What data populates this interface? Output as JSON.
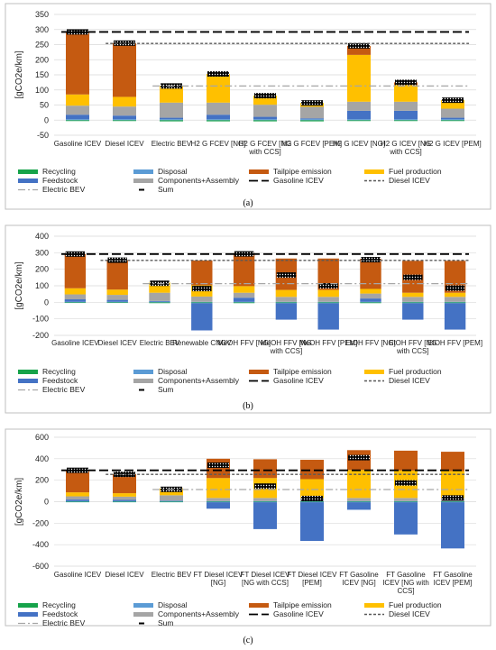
{
  "chart_data": [
    {
      "type": "bar",
      "panel_label": "(a)",
      "ylabel": "[gCO2e/km]",
      "ylim": [
        -50,
        350
      ],
      "yticks": [
        -50,
        0,
        50,
        100,
        150,
        200,
        250,
        300,
        350
      ],
      "categories": [
        "Gasoline ICEV",
        "Diesel ICEV",
        "Electric BEV",
        "H2 G FCEV [NG]",
        "H2 G FCEV [NG with CCS]",
        "H2 G FCEV [PEM]",
        "H2 G ICEV [NG]",
        "H2 G ICEV [NG with CCS]",
        "H2 G ICEV [PEM]"
      ],
      "series": [
        {
          "name": "Recycling",
          "values": [
            -3,
            -3,
            -4,
            -4,
            -4,
            -4,
            -3,
            -3,
            -3
          ]
        },
        {
          "name": "Disposal",
          "values": [
            3,
            3,
            3,
            3,
            3,
            3,
            3,
            3,
            3
          ]
        },
        {
          "name": "Feedstock",
          "values": [
            15,
            12,
            5,
            15,
            8,
            3,
            28,
            28,
            5
          ]
        },
        {
          "name": "Components+Assembly",
          "values": [
            30,
            30,
            50,
            40,
            40,
            38,
            30,
            30,
            30
          ]
        },
        {
          "name": "Fuel production",
          "values": [
            37,
            32,
            55,
            95,
            30,
            13,
            155,
            55,
            28
          ]
        },
        {
          "name": "Tailpipe emission",
          "values": [
            207,
            178,
            0,
            0,
            0,
            0,
            30,
            9,
            0
          ]
        }
      ],
      "sum": [
        292,
        255,
        113,
        153,
        81,
        57,
        246,
        125,
        66
      ],
      "reference_lines": {
        "Gasoline ICEV": 292,
        "Diesel ICEV": 254,
        "Electric BEV": 113
      }
    },
    {
      "type": "bar",
      "panel_label": "(b)",
      "ylabel": "[gCO2e/km]",
      "ylim": [
        -200,
        400
      ],
      "yticks": [
        -200,
        -100,
        0,
        100,
        200,
        300,
        400
      ],
      "categories": [
        "Gasoline ICEV",
        "Diesel ICEV",
        "Electric BEV",
        "Renewable CNGV",
        "MeOH FFV [NG]",
        "MeOH FFV [NG with CCS]",
        "MeOH FFV [PEM]",
        "EtOH FFV [NG]",
        "EtOH FFV [NG with CCS]",
        "EtOH FFV [PEM]"
      ],
      "series": [
        {
          "name": "Recycling",
          "values": [
            -4,
            -4,
            -5,
            -5,
            -5,
            -5,
            -5,
            -5,
            -5,
            -5
          ]
        },
        {
          "name": "Disposal",
          "values": [
            3,
            3,
            3,
            3,
            3,
            3,
            3,
            3,
            3,
            3
          ]
        },
        {
          "name": "Feedstock",
          "values": [
            15,
            12,
            5,
            -165,
            25,
            -100,
            -160,
            20,
            -100,
            -160
          ]
        },
        {
          "name": "Components+Assembly",
          "values": [
            30,
            30,
            50,
            32,
            30,
            30,
            30,
            30,
            30,
            30
          ]
        },
        {
          "name": "Fuel production",
          "values": [
            37,
            32,
            62,
            68,
            40,
            42,
            42,
            28,
            25,
            25
          ]
        },
        {
          "name": "Tailpipe emission",
          "values": [
            207,
            178,
            0,
            150,
            200,
            190,
            190,
            183,
            193,
            193
          ]
        }
      ],
      "sum": [
        292,
        255,
        115,
        83,
        293,
        165,
        100,
        258,
        151,
        86
      ],
      "reference_lines": {
        "Gasoline ICEV": 292,
        "Diesel ICEV": 254,
        "Electric BEV": 113
      }
    },
    {
      "type": "bar",
      "panel_label": "(c)",
      "ylabel": "[gCO2e/km]",
      "ylim": [
        -600,
        600
      ],
      "yticks": [
        -600,
        -400,
        -200,
        0,
        200,
        400,
        600
      ],
      "categories": [
        "Gasoline ICEV",
        "Diesel ICEV",
        "Electric BEV",
        "FT Diesel ICEV [NG]",
        "FT Diesel ICEV [NG with CCS]",
        "FT Diesel ICEV [PEM]",
        "FT Gasoline ICEV [NG]",
        "FT Gasoline ICEV [NG with CCS]",
        "FT Gasoline ICEV [PEM]"
      ],
      "series": [
        {
          "name": "Recycling",
          "values": [
            -5,
            -5,
            -5,
            -5,
            -5,
            -5,
            -5,
            -5,
            -5
          ]
        },
        {
          "name": "Disposal",
          "values": [
            5,
            5,
            5,
            5,
            5,
            5,
            5,
            5,
            5
          ]
        },
        {
          "name": "Feedstock",
          "values": [
            15,
            12,
            5,
            -60,
            -250,
            -360,
            -70,
            -300,
            -430
          ]
        },
        {
          "name": "Components+Assembly",
          "values": [
            30,
            30,
            50,
            30,
            30,
            30,
            30,
            30,
            30
          ]
        },
        {
          "name": "Fuel production",
          "values": [
            37,
            32,
            65,
            185,
            185,
            175,
            260,
            255,
            250
          ]
        },
        {
          "name": "Tailpipe emission",
          "values": [
            207,
            178,
            0,
            180,
            175,
            180,
            185,
            185,
            180
          ]
        }
      ],
      "sum": [
        292,
        255,
        115,
        340,
        145,
        30,
        410,
        175,
        35
      ],
      "reference_lines": {
        "Gasoline ICEV": 292,
        "Diesel ICEV": 254,
        "Electric BEV": 113
      }
    }
  ],
  "legend": {
    "recycling": "Recycling",
    "disposal": "Disposal",
    "tailpipe": "Tailpipe emission",
    "fuel": "Fuel production",
    "feedstock": "Feedstock",
    "components": "Components+Assembly",
    "gasoline": "Gasoline ICEV",
    "diesel": "Diesel ICEV",
    "bev": "Electric BEV",
    "sum": "Sum"
  },
  "colors": {
    "recycling": "#16a34a",
    "disposal": "#5b9bd5",
    "feedstock": "#4472c4",
    "components": "#a5a5a5",
    "fuel": "#ffc000",
    "tailpipe": "#c55a11",
    "sum": "#000000",
    "grid": "#d9d9d9"
  }
}
